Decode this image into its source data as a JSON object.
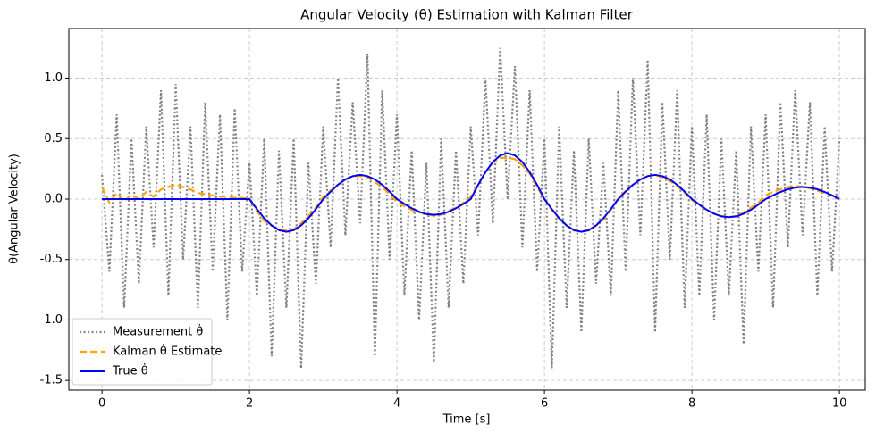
{
  "chart_data": {
    "type": "line",
    "title": "Angular Velocity (θ) Estimation with Kalman Filter",
    "x_label": "Time [s]",
    "y_label": "θ(Angular Velocity)",
    "x": [
      0,
      0.1,
      0.2,
      0.3,
      0.4,
      0.5,
      0.6,
      0.7,
      0.8,
      0.9,
      1,
      1.1,
      1.2,
      1.3,
      1.4,
      1.5,
      1.6,
      1.7,
      1.8,
      1.9,
      2,
      2.1,
      2.2,
      2.3,
      2.4,
      2.5,
      2.6,
      2.7,
      2.8,
      2.9,
      3,
      3.1,
      3.2,
      3.3,
      3.4,
      3.5,
      3.6,
      3.7,
      3.8,
      3.9,
      4,
      4.1,
      4.2,
      4.3,
      4.4,
      4.5,
      4.6,
      4.7,
      4.8,
      4.9,
      5,
      5.1,
      5.2,
      5.3,
      5.4,
      5.5,
      5.6,
      5.7,
      5.8,
      5.9,
      6,
      6.1,
      6.2,
      6.3,
      6.4,
      6.5,
      6.6,
      6.7,
      6.8,
      6.9,
      7,
      7.1,
      7.2,
      7.3,
      7.4,
      7.5,
      7.6,
      7.7,
      7.8,
      7.9,
      8,
      8.1,
      8.2,
      8.3,
      8.4,
      8.5,
      8.6,
      8.7,
      8.8,
      8.9,
      9,
      9.1,
      9.2,
      9.3,
      9.4,
      9.5,
      9.6,
      9.7,
      9.8,
      9.9,
      10
    ],
    "series": [
      {
        "name": "Measurement θ̇",
        "color": "#808080",
        "dash": "dotted",
        "values": [
          0.2,
          -0.6,
          0.7,
          -0.9,
          0.5,
          -0.7,
          0.6,
          -0.4,
          0.9,
          -0.8,
          0.95,
          -0.5,
          0.6,
          -0.9,
          0.8,
          -0.6,
          0.7,
          -1.0,
          0.75,
          -0.6,
          0.3,
          -0.8,
          0.5,
          -1.3,
          0.4,
          -0.9,
          0.5,
          -1.4,
          0.3,
          -0.7,
          0.6,
          -0.4,
          1.0,
          -0.3,
          0.8,
          -0.2,
          1.2,
          -1.3,
          0.9,
          -0.5,
          0.7,
          -0.8,
          0.4,
          -1.0,
          0.3,
          -1.35,
          0.5,
          -0.9,
          0.4,
          -0.7,
          0.6,
          -0.3,
          1.0,
          -0.2,
          1.25,
          0.0,
          1.1,
          -0.4,
          0.9,
          -0.6,
          0.5,
          -1.4,
          0.6,
          -0.9,
          0.4,
          -1.1,
          0.5,
          -0.7,
          0.3,
          -0.8,
          0.9,
          -0.6,
          1.0,
          -0.3,
          1.15,
          -1.1,
          0.8,
          -0.5,
          0.9,
          -0.9,
          0.6,
          -0.8,
          0.7,
          -1.0,
          0.5,
          -0.8,
          0.4,
          -1.2,
          0.6,
          -0.6,
          0.7,
          -0.9,
          0.8,
          -0.4,
          0.9,
          -0.3,
          0.8,
          -0.8,
          0.6,
          -0.6,
          0.5
        ]
      },
      {
        "name": "Kalman θ̇ Estimate",
        "color": "#ffa500",
        "dash": "dashed",
        "values": [
          0.1,
          -0.03,
          0.05,
          -0.02,
          0.04,
          0.0,
          0.06,
          0.02,
          0.08,
          0.1,
          0.12,
          0.1,
          0.08,
          0.05,
          0.04,
          0.03,
          0.02,
          0.02,
          0.01,
          0.01,
          0.0,
          -0.1,
          -0.18,
          -0.22,
          -0.25,
          -0.26,
          -0.25,
          -0.2,
          -0.14,
          -0.07,
          0.02,
          0.07,
          0.12,
          0.16,
          0.19,
          0.19,
          0.18,
          0.14,
          0.1,
          0.04,
          -0.02,
          -0.06,
          -0.09,
          -0.11,
          -0.12,
          -0.14,
          -0.13,
          -0.1,
          -0.07,
          -0.03,
          0.02,
          0.12,
          0.22,
          0.3,
          0.34,
          0.34,
          0.33,
          0.28,
          0.21,
          0.1,
          0.0,
          -0.09,
          -0.16,
          -0.22,
          -0.26,
          -0.27,
          -0.26,
          -0.22,
          -0.17,
          -0.09,
          0.0,
          0.07,
          0.12,
          0.16,
          0.19,
          0.2,
          0.18,
          0.15,
          0.11,
          0.05,
          -0.01,
          -0.05,
          -0.09,
          -0.12,
          -0.14,
          -0.15,
          -0.14,
          -0.11,
          -0.07,
          -0.03,
          0.03,
          0.06,
          0.08,
          0.1,
          0.11,
          0.1,
          0.09,
          0.07,
          0.05,
          0.03,
          0.01
        ]
      },
      {
        "name": "True θ̇",
        "color": "#0000ff",
        "dash": "solid",
        "values": [
          0,
          0,
          0,
          0,
          0,
          0,
          0,
          0,
          0,
          0,
          0,
          0,
          0,
          0,
          0,
          0,
          0,
          0,
          0,
          0,
          0,
          -0.083,
          -0.159,
          -0.218,
          -0.257,
          -0.27,
          -0.257,
          -0.218,
          -0.159,
          -0.083,
          0,
          0.062,
          0.118,
          0.162,
          0.19,
          0.2,
          0.19,
          0.162,
          0.118,
          0.062,
          0,
          -0.04,
          -0.076,
          -0.105,
          -0.124,
          -0.13,
          -0.124,
          -0.105,
          -0.076,
          -0.04,
          0,
          0.117,
          0.223,
          0.307,
          0.361,
          0.38,
          0.361,
          0.307,
          0.223,
          0.117,
          0,
          -0.083,
          -0.159,
          -0.218,
          -0.257,
          -0.27,
          -0.257,
          -0.218,
          -0.159,
          -0.083,
          0,
          0.062,
          0.118,
          0.162,
          0.19,
          0.2,
          0.19,
          0.162,
          0.118,
          0.062,
          0,
          -0.046,
          -0.088,
          -0.121,
          -0.143,
          -0.15,
          -0.143,
          -0.121,
          -0.088,
          -0.046,
          0,
          0.031,
          0.059,
          0.081,
          0.095,
          0.1,
          0.095,
          0.081,
          0.059,
          0.031,
          0
        ]
      }
    ],
    "xlim": [
      -0.45,
      10.35
    ],
    "ylim": [
      -1.58,
      1.41
    ],
    "xticks": [
      0,
      2,
      4,
      6,
      8,
      10
    ],
    "yticks": [
      -1.5,
      {
        "value": -1.0,
        "label": "-1.0"
      },
      -0.5,
      {
        "value": 0,
        "label": "0.0"
      },
      0.5,
      {
        "value": 1.0,
        "label": "1.0"
      }
    ],
    "grid": true,
    "legend": "lower left"
  }
}
